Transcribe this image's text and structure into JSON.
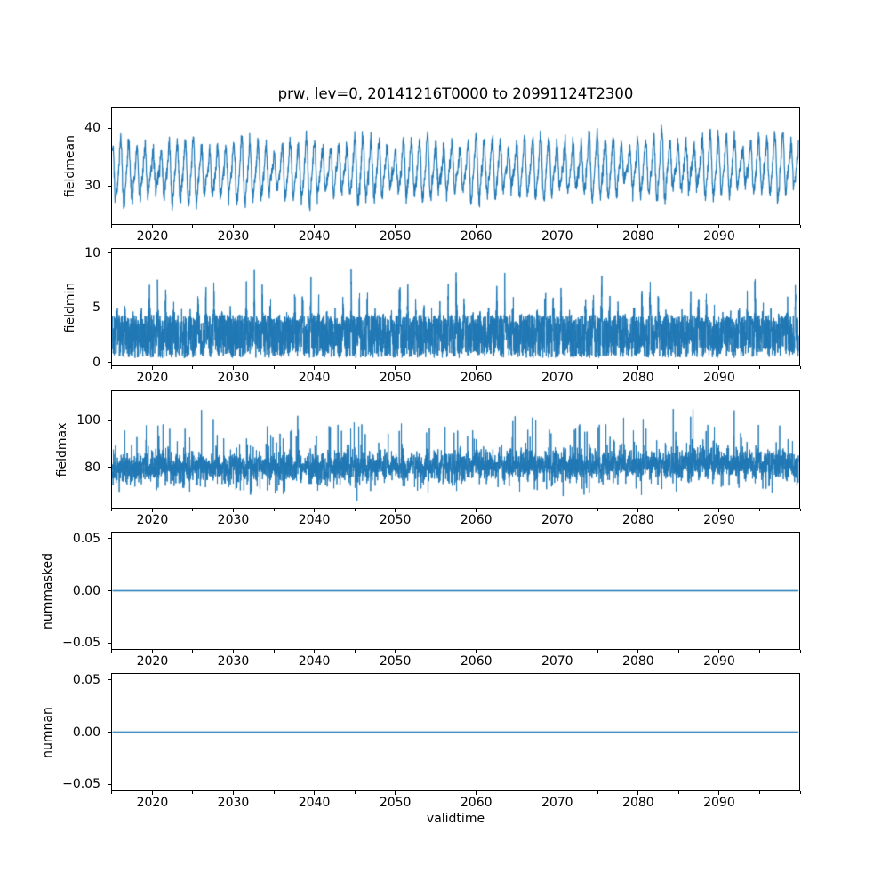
{
  "title": "prw, lev=0, 20141216T0000 to 20991124T2300",
  "xlabel": "validtime",
  "colors": {
    "line": "#1f77b4",
    "axes": "#000000",
    "text": "#000000",
    "background": "#ffffff"
  },
  "x_axis": {
    "lim": [
      2014.9,
      2100.0
    ],
    "data_range": [
      2014.96,
      2099.9
    ],
    "major_ticks": [
      {
        "v": 2020,
        "label": "2020"
      },
      {
        "v": 2030,
        "label": "2030"
      },
      {
        "v": 2040,
        "label": "2040"
      },
      {
        "v": 2050,
        "label": "2050"
      },
      {
        "v": 2060,
        "label": "2060"
      },
      {
        "v": 2070,
        "label": "2070"
      },
      {
        "v": 2080,
        "label": "2080"
      },
      {
        "v": 2090,
        "label": "2090"
      }
    ],
    "minor_ticks": [
      2015,
      2025,
      2035,
      2045,
      2055,
      2065,
      2075,
      2085,
      2095,
      2100
    ]
  },
  "chart_data": [
    {
      "type": "line",
      "name": "fieldmean",
      "ylabel": "fieldmean",
      "ylim": [
        23.3,
        43.7
      ],
      "yticks": [
        {
          "v": 30,
          "label": "30"
        },
        {
          "v": 40,
          "label": "40"
        }
      ],
      "line_width": 1.2,
      "summary": {
        "approx_min": 24.3,
        "approx_max": 43.2,
        "approx_mean": 32.5,
        "pattern": "annual seasonal cycle with high-frequency noise and slight upward trend"
      },
      "gen": {
        "kind": "seasonal",
        "seed": 101,
        "n": 3400,
        "base": 32.2,
        "trend": 1.3,
        "annual_amp": 4.1,
        "semiannual_amp": 1.15,
        "noise_sd": 0.65,
        "amp_mod": [
          0.22,
          7.3,
          0.15,
          2.9
        ],
        "phase": 2.0
      }
    },
    {
      "type": "line",
      "name": "fieldmin",
      "ylabel": "fieldmin",
      "ylim": [
        -0.33,
        10.46
      ],
      "yticks": [
        {
          "v": 0,
          "label": "0"
        },
        {
          "v": 5,
          "label": "5"
        },
        {
          "v": 10,
          "label": "10"
        }
      ],
      "line_width": 1.0,
      "summary": {
        "approx_min": 0.2,
        "approx_max": 10.0,
        "band": [
          0.35,
          4.5
        ],
        "pattern": "dense noisy band 0.3-4.5 with narrow annual peaks reaching 6-10"
      },
      "gen": {
        "kind": "band_peaks",
        "seed": 202,
        "n": 5200,
        "floor": 0.35,
        "band": 4.0,
        "peak_base": 2.6,
        "peak_mod_amp": 1.9,
        "peak_mod_period": 6.1,
        "peak_noise": 0.8,
        "peak_sharp": 8,
        "peak_phase": 0.28,
        "clip_top": 10.3
      }
    },
    {
      "type": "line",
      "name": "fieldmax",
      "ylabel": "fieldmax",
      "ylim": [
        62.2,
        113.2
      ],
      "yticks": [
        {
          "v": 80,
          "label": "80"
        },
        {
          "v": 100,
          "label": "100"
        }
      ],
      "line_width": 1.0,
      "summary": {
        "approx_min": 64.5,
        "approx_max": 110.7,
        "core_band": [
          72,
          90
        ],
        "pattern": "dense noise around 80 with upward spikes to ~110, slight upward trend"
      },
      "gen": {
        "kind": "noisy_spikes",
        "seed": 303,
        "n": 5200,
        "center": 79.5,
        "trend": 2.2,
        "noise_sd": 3.1,
        "seasonal_amp": 1.3,
        "phase": 2.0,
        "spike_prob": 0.05,
        "spike_max": 20,
        "dip_prob": 0.05,
        "dip_max": 9,
        "clip": [
          64.4,
          110.8
        ]
      }
    },
    {
      "type": "line",
      "name": "nummasked",
      "ylabel": "nummasked",
      "ylim": [
        -0.0567,
        0.0567
      ],
      "yticks": [
        {
          "v": -0.05,
          "label": "−0.05"
        },
        {
          "v": 0,
          "label": "0.00"
        },
        {
          "v": 0.05,
          "label": "0.05"
        }
      ],
      "line_width": 1.5,
      "summary": {
        "pattern": "constant zero line"
      },
      "gen": {
        "kind": "constant",
        "value": 0
      }
    },
    {
      "type": "line",
      "name": "numnan",
      "ylabel": "numnan",
      "ylim": [
        -0.0567,
        0.0567
      ],
      "yticks": [
        {
          "v": -0.05,
          "label": "−0.05"
        },
        {
          "v": 0,
          "label": "0.00"
        },
        {
          "v": 0.05,
          "label": "0.05"
        }
      ],
      "line_width": 1.5,
      "summary": {
        "pattern": "constant zero line"
      },
      "gen": {
        "kind": "constant",
        "value": 0
      }
    }
  ]
}
